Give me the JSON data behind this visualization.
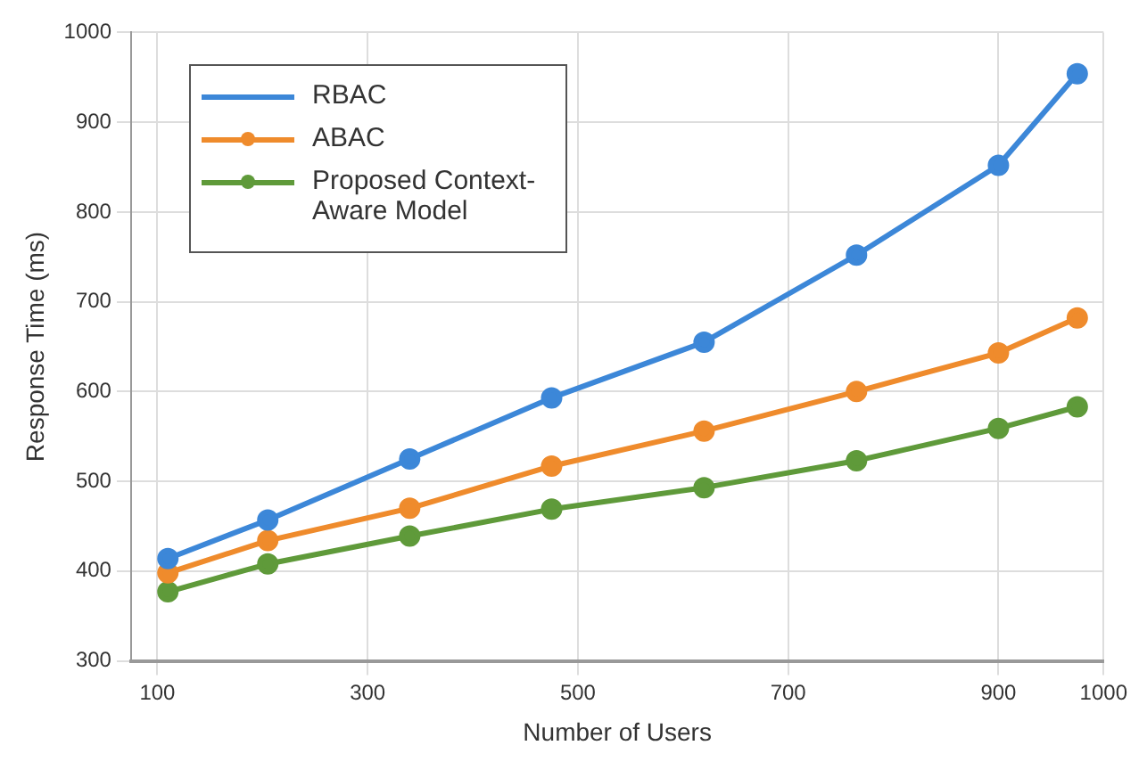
{
  "chart_data": {
    "type": "line",
    "xlabel": "Number of Users",
    "ylabel": "Response Time (ms)",
    "x": [
      110,
      205,
      340,
      475,
      620,
      765,
      900,
      975
    ],
    "xlim": [
      75,
      1000
    ],
    "xticks": [
      100,
      300,
      500,
      700,
      900,
      1000
    ],
    "ylim": [
      300,
      1000
    ],
    "yticks": [
      300,
      400,
      500,
      600,
      700,
      800,
      900,
      1000
    ],
    "grid": true,
    "legend": "top left",
    "marker": "circle",
    "line_style": "solid",
    "series": [
      {
        "name": "RBAC",
        "color": "#3c87d8",
        "values": [
          414,
          457,
          525,
          593,
          655,
          752,
          852,
          954
        ]
      },
      {
        "name": "ABAC",
        "color": "#ef8b2c",
        "values": [
          398,
          434,
          470,
          517,
          556,
          600,
          643,
          682
        ]
      },
      {
        "name": "Proposed Context-Aware Model",
        "color": "#5f9a3a",
        "values": [
          377,
          408,
          439,
          469,
          493,
          523,
          559,
          583
        ]
      }
    ]
  }
}
